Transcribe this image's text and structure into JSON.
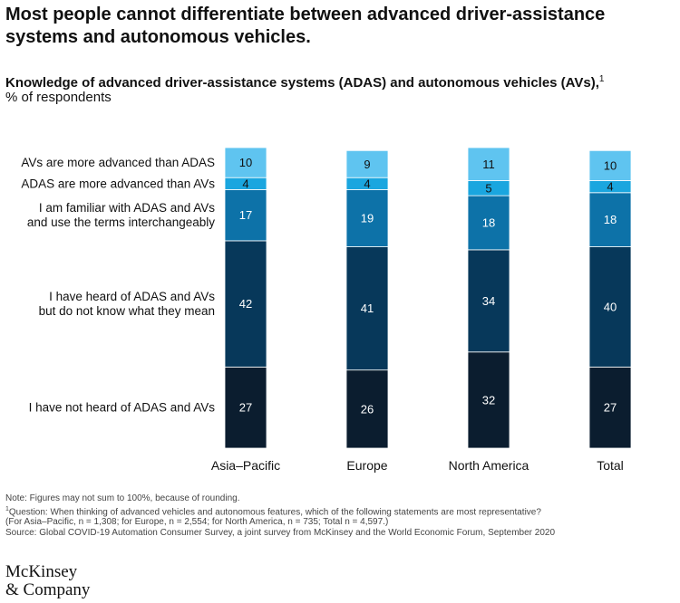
{
  "header": {
    "headline": "Most people cannot differentiate between advanced driver-assistance systems and autonomous vehicles.",
    "subtitle": "Knowledge of advanced driver-assistance systems (ADAS) and autonomous vehicles (AVs),",
    "subtitle_footnote_mark": "1",
    "unit": "% of respondents"
  },
  "chart_data": {
    "type": "bar",
    "stacked": true,
    "orientation": "vertical",
    "categories": [
      "Asia–Pacific",
      "Europe",
      "North America",
      "Total"
    ],
    "series": [
      {
        "name": "I have not heard of ADAS and AVs",
        "values": [
          27,
          26,
          32,
          27
        ],
        "color": "#0b1d2f",
        "label_color": "#ffffff"
      },
      {
        "name": "I have heard of ADAS and AVs but do not know what they mean",
        "values": [
          42,
          41,
          34,
          40
        ],
        "color": "#07385a",
        "label_color": "#ffffff"
      },
      {
        "name": "I am familiar with ADAS and AVs and use the terms interchangeably",
        "values": [
          17,
          19,
          18,
          18
        ],
        "color": "#0d72a8",
        "label_color": "#ffffff"
      },
      {
        "name": "ADAS are more advanced than AVs",
        "values": [
          4,
          4,
          5,
          4
        ],
        "color": "#1aa6df",
        "label_color": "#111111"
      },
      {
        "name": "AVs are more advanced than ADAS",
        "values": [
          10,
          9,
          11,
          10
        ],
        "color": "#5fc4f0",
        "label_color": "#111111"
      }
    ],
    "legend_placement": "left",
    "grid": false
  },
  "footer": {
    "note": "Note: Figures may not sum to 100%, because of rounding.",
    "footnote_mark": "1",
    "question": "Question: When thinking of advanced vehicles and autonomous features, which of the following statements are most representative?",
    "sample": "(For Asia–Pacific, n = 1,308; for Europe, n = 2,554; for North America, n = 735; Total n = 4,597.)",
    "source": "Source: Global COVID-19 Automation Consumer Survey, a joint survey from McKinsey and the World Economic Forum, September 2020",
    "logo_line1": "McKinsey",
    "logo_line2": "& Company"
  }
}
